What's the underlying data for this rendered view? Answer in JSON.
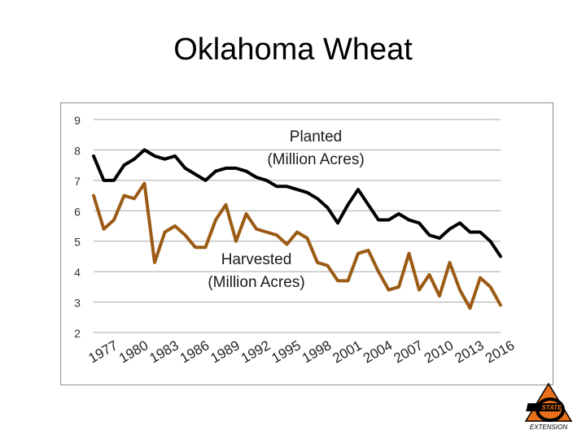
{
  "slide": {
    "title": "Oklahoma Wheat"
  },
  "annotations": {
    "planted": [
      "Planted",
      "(Million Acres)"
    ],
    "harvested": [
      "Harvested",
      "(Million Acres)"
    ]
  },
  "logo": {
    "text": "OSU Extension"
  },
  "colors": {
    "planted": "#000000",
    "harvested": "#9c5b14",
    "grid": "#a6a6a6",
    "logo_orange": "#e8701a"
  },
  "chart_data": {
    "type": "line",
    "title": "",
    "xlabel": "",
    "ylabel": "",
    "ylim": [
      2,
      9
    ],
    "yticks": [
      2,
      3,
      4,
      5,
      6,
      7,
      8,
      9
    ],
    "grid": true,
    "x": [
      1977,
      1978,
      1979,
      1980,
      1981,
      1982,
      1983,
      1984,
      1985,
      1986,
      1987,
      1988,
      1989,
      1990,
      1991,
      1992,
      1993,
      1994,
      1995,
      1996,
      1997,
      1998,
      1999,
      2000,
      2001,
      2002,
      2003,
      2004,
      2005,
      2006,
      2007,
      2008,
      2009,
      2010,
      2011,
      2012,
      2013,
      2014,
      2015,
      2016,
      2017
    ],
    "xtick_labels": [
      "1977",
      "1980",
      "1983",
      "1986",
      "1989",
      "1992",
      "1995",
      "1998",
      "2001",
      "2004",
      "2007",
      "2010",
      "2013",
      "2016"
    ],
    "series": [
      {
        "name": "Planted (Million Acres)",
        "values": [
          7.8,
          7.0,
          7.0,
          7.5,
          7.7,
          8.0,
          7.8,
          7.7,
          7.8,
          7.4,
          7.2,
          7.0,
          7.3,
          7.4,
          7.4,
          7.3,
          7.1,
          7.0,
          6.8,
          6.8,
          6.7,
          6.6,
          6.4,
          6.1,
          5.6,
          6.2,
          6.7,
          6.2,
          5.7,
          5.7,
          5.9,
          5.7,
          5.6,
          5.2,
          5.1,
          5.4,
          5.6,
          5.3,
          5.3,
          5.0,
          4.5
        ]
      },
      {
        "name": "Harvested (Million Acres)",
        "values": [
          6.5,
          5.4,
          5.7,
          6.5,
          6.4,
          6.9,
          4.3,
          5.3,
          5.5,
          5.2,
          4.8,
          4.8,
          5.7,
          6.2,
          5.0,
          5.9,
          5.4,
          5.3,
          5.2,
          4.9,
          5.3,
          5.1,
          4.3,
          4.2,
          3.7,
          3.7,
          4.6,
          4.7,
          4.0,
          3.4,
          3.5,
          4.6,
          3.4,
          3.9,
          3.2,
          4.3,
          3.4,
          2.8,
          3.8,
          3.5,
          2.9
        ]
      }
    ]
  }
}
